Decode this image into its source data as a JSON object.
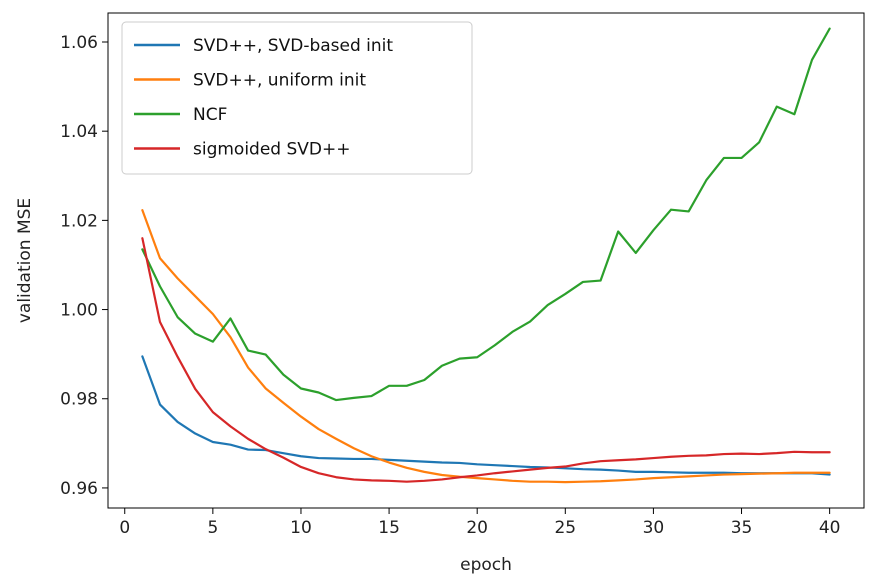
{
  "chart_data": {
    "type": "line",
    "title": "",
    "xlabel": "epoch",
    "ylabel": "validation MSE",
    "xlim": [
      -0.95,
      41.95
    ],
    "ylim": [
      0.9555,
      1.0665
    ],
    "xticks": [
      0,
      5,
      10,
      15,
      20,
      25,
      30,
      35,
      40
    ],
    "yticks": [
      0.96,
      0.98,
      1.0,
      1.02,
      1.04,
      1.06
    ],
    "ytick_labels": [
      "0.96",
      "0.98",
      "1.00",
      "1.02",
      "1.04",
      "1.06"
    ],
    "grid": false,
    "legend_position": "top-left",
    "x": [
      1,
      2,
      3,
      4,
      5,
      6,
      7,
      8,
      9,
      10,
      11,
      12,
      13,
      14,
      15,
      16,
      17,
      18,
      19,
      20,
      21,
      22,
      23,
      24,
      25,
      26,
      27,
      28,
      29,
      30,
      31,
      32,
      33,
      34,
      35,
      36,
      37,
      38,
      39,
      40
    ],
    "series": [
      {
        "name": "SVD++, SVD-based init",
        "color": "#1f77b4",
        "values": [
          0.9895,
          0.9787,
          0.9748,
          0.9722,
          0.9703,
          0.9697,
          0.9686,
          0.9685,
          0.9678,
          0.9671,
          0.9667,
          0.9666,
          0.9665,
          0.9665,
          0.9663,
          0.9661,
          0.9659,
          0.9657,
          0.9656,
          0.9653,
          0.9651,
          0.9649,
          0.9647,
          0.9646,
          0.9644,
          0.9642,
          0.9641,
          0.9639,
          0.9636,
          0.9636,
          0.9635,
          0.9634,
          0.9634,
          0.9634,
          0.9633,
          0.9633,
          0.9633,
          0.9633,
          0.9633,
          0.963
        ]
      },
      {
        "name": "SVD++, uniform init",
        "color": "#ff7f0e",
        "values": [
          1.0223,
          1.0115,
          1.007,
          1.003,
          0.999,
          0.9938,
          0.987,
          0.9823,
          0.9791,
          0.976,
          0.9732,
          0.971,
          0.9689,
          0.9671,
          0.9657,
          0.9645,
          0.9636,
          0.9629,
          0.9625,
          0.9622,
          0.9619,
          0.9616,
          0.9614,
          0.9614,
          0.9613,
          0.9614,
          0.9615,
          0.9617,
          0.9619,
          0.9622,
          0.9624,
          0.9626,
          0.9628,
          0.963,
          0.9631,
          0.9632,
          0.9633,
          0.9634,
          0.9634,
          0.9634
        ]
      },
      {
        "name": "NCF",
        "color": "#2ca02c",
        "values": [
          1.0135,
          1.0052,
          0.9983,
          0.9946,
          0.9928,
          0.998,
          0.9908,
          0.9899,
          0.9854,
          0.9823,
          0.9814,
          0.9797,
          0.9802,
          0.9806,
          0.9829,
          0.9829,
          0.9842,
          0.9874,
          0.989,
          0.9893,
          0.992,
          0.995,
          0.9973,
          1.001,
          1.0035,
          1.0062,
          1.0065,
          1.0175,
          1.0127,
          1.0178,
          1.0224,
          1.022,
          1.029,
          1.034,
          1.034,
          1.0375,
          1.0455,
          1.0438,
          1.056,
          1.063
        ]
      },
      {
        "name": "sigmoided SVD++",
        "color": "#d62728",
        "values": [
          1.016,
          0.9972,
          0.9894,
          0.9822,
          0.977,
          0.9738,
          0.971,
          0.9687,
          0.9668,
          0.9647,
          0.9633,
          0.9624,
          0.9619,
          0.9617,
          0.9616,
          0.9614,
          0.9616,
          0.9619,
          0.9624,
          0.9628,
          0.9633,
          0.9637,
          0.9641,
          0.9645,
          0.9648,
          0.9655,
          0.966,
          0.9662,
          0.9664,
          0.9667,
          0.967,
          0.9672,
          0.9673,
          0.9676,
          0.9677,
          0.9676,
          0.9678,
          0.9681,
          0.968,
          0.968
        ]
      }
    ]
  }
}
